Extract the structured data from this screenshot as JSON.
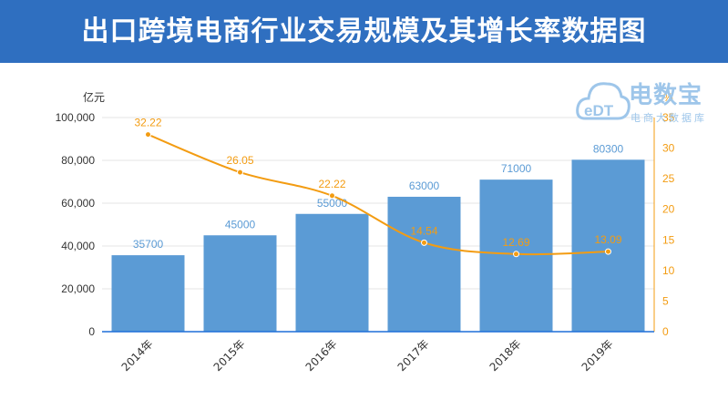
{
  "title": "出口跨境电商行业交易规模及其增长率数据图",
  "watermark": {
    "brand": "电数宝",
    "tagline": "电商大数据库",
    "logo_text": "eDT",
    "icon": "cloud-logo-icon"
  },
  "colors": {
    "header": "#2f6fc0",
    "bar": "#5b9bd5",
    "line": "#f39c12",
    "bar_label": "#5b9bd5",
    "line_label": "#f39c12"
  },
  "chart_data": {
    "type": "bar+line",
    "categories": [
      "2014年",
      "2015年",
      "2016年",
      "2017年",
      "2018年",
      "2019年"
    ],
    "series": [
      {
        "type": "bar",
        "axis": "left",
        "values": [
          35700,
          45000,
          55000,
          63000,
          71000,
          80300
        ]
      },
      {
        "type": "line",
        "axis": "right",
        "values": [
          32.22,
          26.05,
          22.22,
          14.54,
          12.69,
          13.09
        ]
      }
    ],
    "y_left": {
      "unit": "亿元",
      "range": [
        0,
        100000
      ],
      "ticks": [
        "0",
        "20,000",
        "40,000",
        "60,000",
        "80,000",
        "100,000"
      ]
    },
    "y_right": {
      "unit": "%",
      "range": [
        0,
        35
      ],
      "ticks": [
        "0",
        "5",
        "10",
        "15",
        "20",
        "25",
        "30",
        "35"
      ]
    },
    "grid": true
  }
}
